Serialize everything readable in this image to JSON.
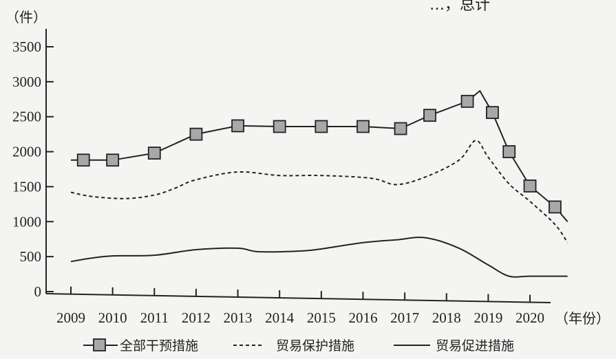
{
  "chart_data": {
    "type": "line",
    "title_fragment": "…，总计",
    "y_unit_label": "（件）",
    "x_unit_label": "（年份）",
    "ylim": [
      0,
      3500
    ],
    "yticks": [
      0,
      500,
      1000,
      1500,
      2000,
      2500,
      3000,
      3500
    ],
    "categories": [
      "2009",
      "2010",
      "2011",
      "2012",
      "2013",
      "2014",
      "2015",
      "2016",
      "2017",
      "2018",
      "2019",
      "2020"
    ],
    "grid": false,
    "legend_position": "bottom",
    "series": [
      {
        "name": "全部干预措施",
        "style": "solid-square-markers",
        "color": "#222222",
        "points": [
          {
            "x": 2009.0,
            "y": 1880
          },
          {
            "x": 2009.3,
            "y": 1880
          },
          {
            "x": 2010.0,
            "y": 1880
          },
          {
            "x": 2011.0,
            "y": 1980
          },
          {
            "x": 2012.0,
            "y": 2250
          },
          {
            "x": 2013.0,
            "y": 2370
          },
          {
            "x": 2014.0,
            "y": 2360
          },
          {
            "x": 2015.0,
            "y": 2360
          },
          {
            "x": 2016.0,
            "y": 2360
          },
          {
            "x": 2016.9,
            "y": 2330
          },
          {
            "x": 2017.6,
            "y": 2520
          },
          {
            "x": 2018.5,
            "y": 2720
          },
          {
            "x": 2018.8,
            "y": 2870
          },
          {
            "x": 2019.1,
            "y": 2560
          },
          {
            "x": 2019.5,
            "y": 2000
          },
          {
            "x": 2020.0,
            "y": 1510
          },
          {
            "x": 2020.6,
            "y": 1210
          },
          {
            "x": 2020.9,
            "y": 1000
          }
        ],
        "markers": [
          {
            "x": 2009.3,
            "y": 1880
          },
          {
            "x": 2010.0,
            "y": 1880
          },
          {
            "x": 2011.0,
            "y": 1980
          },
          {
            "x": 2012.0,
            "y": 2250
          },
          {
            "x": 2013.0,
            "y": 2370
          },
          {
            "x": 2014.0,
            "y": 2360
          },
          {
            "x": 2015.0,
            "y": 2360
          },
          {
            "x": 2016.0,
            "y": 2360
          },
          {
            "x": 2016.9,
            "y": 2330
          },
          {
            "x": 2017.6,
            "y": 2520
          },
          {
            "x": 2018.5,
            "y": 2720
          },
          {
            "x": 2019.1,
            "y": 2560
          },
          {
            "x": 2019.5,
            "y": 2000
          },
          {
            "x": 2020.0,
            "y": 1510
          },
          {
            "x": 2020.6,
            "y": 1210
          }
        ]
      },
      {
        "name": "贸易保护措施",
        "style": "dashed",
        "color": "#222222",
        "points": [
          {
            "x": 2009.0,
            "y": 1420
          },
          {
            "x": 2009.5,
            "y": 1360
          },
          {
            "x": 2010.3,
            "y": 1330
          },
          {
            "x": 2011.0,
            "y": 1380
          },
          {
            "x": 2011.5,
            "y": 1480
          },
          {
            "x": 2012.0,
            "y": 1600
          },
          {
            "x": 2013.0,
            "y": 1710
          },
          {
            "x": 2014.0,
            "y": 1660
          },
          {
            "x": 2015.0,
            "y": 1660
          },
          {
            "x": 2016.2,
            "y": 1620
          },
          {
            "x": 2016.8,
            "y": 1530
          },
          {
            "x": 2017.5,
            "y": 1640
          },
          {
            "x": 2018.3,
            "y": 1880
          },
          {
            "x": 2018.7,
            "y": 2160
          },
          {
            "x": 2019.0,
            "y": 1920
          },
          {
            "x": 2019.5,
            "y": 1540
          },
          {
            "x": 2020.0,
            "y": 1290
          },
          {
            "x": 2020.6,
            "y": 960
          },
          {
            "x": 2020.9,
            "y": 700
          }
        ]
      },
      {
        "name": "贸易促进措施",
        "style": "solid",
        "color": "#222222",
        "points": [
          {
            "x": 2009.0,
            "y": 430
          },
          {
            "x": 2009.5,
            "y": 480
          },
          {
            "x": 2010.0,
            "y": 510
          },
          {
            "x": 2011.0,
            "y": 520
          },
          {
            "x": 2012.0,
            "y": 600
          },
          {
            "x": 2013.0,
            "y": 620
          },
          {
            "x": 2013.5,
            "y": 570
          },
          {
            "x": 2014.5,
            "y": 580
          },
          {
            "x": 2015.0,
            "y": 610
          },
          {
            "x": 2016.0,
            "y": 700
          },
          {
            "x": 2016.8,
            "y": 740
          },
          {
            "x": 2017.5,
            "y": 770
          },
          {
            "x": 2018.3,
            "y": 620
          },
          {
            "x": 2019.0,
            "y": 380
          },
          {
            "x": 2019.5,
            "y": 220
          },
          {
            "x": 2020.0,
            "y": 220
          },
          {
            "x": 2020.9,
            "y": 220
          }
        ]
      }
    ]
  }
}
